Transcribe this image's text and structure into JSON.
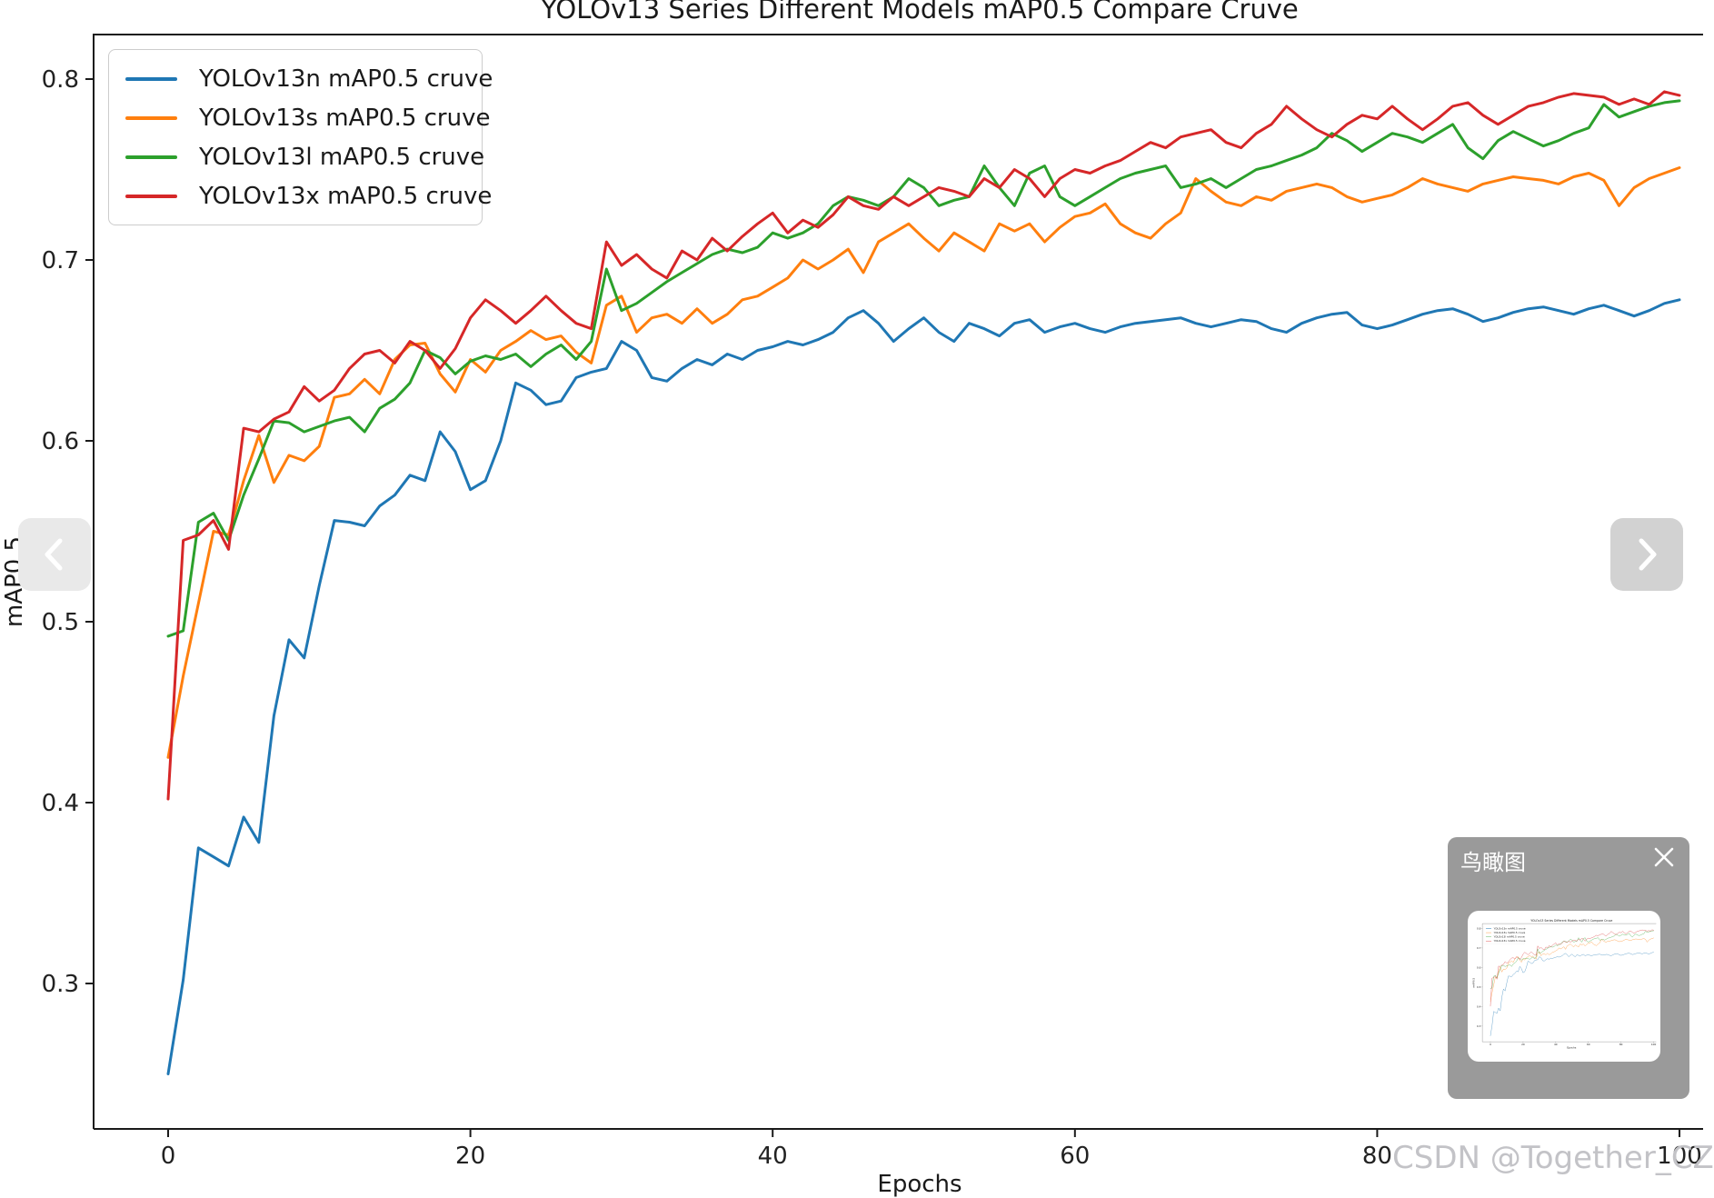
{
  "chart_data": {
    "type": "line",
    "title": "YOLOv13 Series Different Models mAP0.5 Compare Cruve",
    "xlabel": "Epochs",
    "ylabel": "mAP0.5",
    "grid": false,
    "legend_position": "upper left",
    "xlim": [
      -5,
      101.6
    ],
    "ylim": [
      0.22,
      0.825
    ],
    "xticks": [
      0,
      20,
      40,
      60,
      80,
      100
    ],
    "xtick_labels": [
      "0",
      "20",
      "40",
      "60",
      "80",
      "100"
    ],
    "yticks": [
      0.3,
      0.4,
      0.5,
      0.6,
      0.7,
      0.8
    ],
    "ytick_labels": [
      "0.3",
      "0.4",
      "0.5",
      "0.6",
      "0.7",
      "0.8"
    ],
    "x_start": 0,
    "x_step": 1,
    "series": [
      {
        "name": "YOLOv13n mAP0.5 cruve",
        "color": "#1f77b4",
        "values": [
          0.25,
          0.302,
          0.375,
          0.37,
          0.365,
          0.392,
          0.378,
          0.448,
          0.49,
          0.48,
          0.52,
          0.556,
          0.555,
          0.553,
          0.564,
          0.57,
          0.581,
          0.578,
          0.605,
          0.594,
          0.573,
          0.578,
          0.6,
          0.632,
          0.628,
          0.62,
          0.622,
          0.635,
          0.638,
          0.64,
          0.655,
          0.65,
          0.635,
          0.633,
          0.64,
          0.645,
          0.642,
          0.648,
          0.645,
          0.65,
          0.652,
          0.655,
          0.653,
          0.656,
          0.66,
          0.668,
          0.672,
          0.665,
          0.655,
          0.662,
          0.668,
          0.66,
          0.655,
          0.665,
          0.662,
          0.658,
          0.665,
          0.667,
          0.66,
          0.663,
          0.665,
          0.662,
          0.66,
          0.663,
          0.665,
          0.666,
          0.667,
          0.668,
          0.665,
          0.663,
          0.665,
          0.667,
          0.666,
          0.662,
          0.66,
          0.665,
          0.668,
          0.67,
          0.671,
          0.664,
          0.662,
          0.664,
          0.667,
          0.67,
          0.672,
          0.673,
          0.67,
          0.666,
          0.668,
          0.671,
          0.673,
          0.674,
          0.672,
          0.67,
          0.673,
          0.675,
          0.672,
          0.669,
          0.672,
          0.676,
          0.678
        ]
      },
      {
        "name": "YOLOv13s mAP0.5 cruve",
        "color": "#ff7f0e",
        "values": [
          0.425,
          0.47,
          0.51,
          0.55,
          0.548,
          0.578,
          0.603,
          0.577,
          0.592,
          0.589,
          0.597,
          0.624,
          0.626,
          0.634,
          0.626,
          0.645,
          0.653,
          0.654,
          0.637,
          0.627,
          0.645,
          0.638,
          0.65,
          0.655,
          0.661,
          0.656,
          0.658,
          0.649,
          0.643,
          0.675,
          0.68,
          0.66,
          0.668,
          0.67,
          0.665,
          0.673,
          0.665,
          0.67,
          0.678,
          0.68,
          0.685,
          0.69,
          0.7,
          0.695,
          0.7,
          0.706,
          0.693,
          0.71,
          0.715,
          0.72,
          0.712,
          0.705,
          0.715,
          0.71,
          0.705,
          0.72,
          0.716,
          0.72,
          0.71,
          0.718,
          0.724,
          0.726,
          0.731,
          0.72,
          0.715,
          0.712,
          0.72,
          0.726,
          0.745,
          0.738,
          0.732,
          0.73,
          0.735,
          0.733,
          0.738,
          0.74,
          0.742,
          0.74,
          0.735,
          0.732,
          0.734,
          0.736,
          0.74,
          0.745,
          0.742,
          0.74,
          0.738,
          0.742,
          0.744,
          0.746,
          0.745,
          0.744,
          0.742,
          0.746,
          0.748,
          0.744,
          0.73,
          0.74,
          0.745,
          0.748,
          0.751
        ]
      },
      {
        "name": "YOLOv13l mAP0.5 cruve",
        "color": "#2ca02c",
        "values": [
          0.492,
          0.495,
          0.555,
          0.56,
          0.545,
          0.57,
          0.59,
          0.611,
          0.61,
          0.605,
          0.608,
          0.611,
          0.613,
          0.605,
          0.618,
          0.623,
          0.632,
          0.65,
          0.646,
          0.637,
          0.644,
          0.647,
          0.645,
          0.648,
          0.641,
          0.648,
          0.653,
          0.645,
          0.655,
          0.695,
          0.672,
          0.676,
          0.682,
          0.688,
          0.693,
          0.698,
          0.703,
          0.706,
          0.704,
          0.707,
          0.715,
          0.712,
          0.715,
          0.72,
          0.73,
          0.735,
          0.733,
          0.73,
          0.735,
          0.745,
          0.74,
          0.73,
          0.733,
          0.735,
          0.752,
          0.74,
          0.73,
          0.748,
          0.752,
          0.735,
          0.73,
          0.735,
          0.74,
          0.745,
          0.748,
          0.75,
          0.752,
          0.74,
          0.742,
          0.745,
          0.74,
          0.745,
          0.75,
          0.752,
          0.755,
          0.758,
          0.762,
          0.77,
          0.766,
          0.76,
          0.765,
          0.77,
          0.768,
          0.765,
          0.77,
          0.775,
          0.762,
          0.756,
          0.766,
          0.771,
          0.767,
          0.763,
          0.766,
          0.77,
          0.773,
          0.786,
          0.779,
          0.782,
          0.785,
          0.787,
          0.788
        ]
      },
      {
        "name": "YOLOv13x mAP0.5 cruve",
        "color": "#d62728",
        "values": [
          0.402,
          0.545,
          0.548,
          0.556,
          0.54,
          0.607,
          0.605,
          0.612,
          0.616,
          0.63,
          0.622,
          0.628,
          0.64,
          0.648,
          0.65,
          0.643,
          0.655,
          0.65,
          0.64,
          0.651,
          0.668,
          0.678,
          0.672,
          0.665,
          0.672,
          0.68,
          0.672,
          0.665,
          0.662,
          0.71,
          0.697,
          0.703,
          0.695,
          0.69,
          0.705,
          0.7,
          0.712,
          0.705,
          0.713,
          0.72,
          0.726,
          0.715,
          0.722,
          0.718,
          0.725,
          0.735,
          0.73,
          0.728,
          0.735,
          0.73,
          0.735,
          0.74,
          0.738,
          0.735,
          0.745,
          0.74,
          0.75,
          0.745,
          0.735,
          0.745,
          0.75,
          0.748,
          0.752,
          0.755,
          0.76,
          0.765,
          0.762,
          0.768,
          0.77,
          0.772,
          0.765,
          0.762,
          0.77,
          0.775,
          0.785,
          0.778,
          0.772,
          0.768,
          0.775,
          0.78,
          0.778,
          0.785,
          0.778,
          0.772,
          0.778,
          0.785,
          0.787,
          0.78,
          0.775,
          0.78,
          0.785,
          0.787,
          0.79,
          0.792,
          0.791,
          0.79,
          0.786,
          0.789,
          0.786,
          0.793,
          0.791
        ]
      }
    ]
  },
  "overlay": {
    "minimap_title": "鸟瞰图",
    "watermark": "CSDN @Together_CZ"
  },
  "colors": {
    "axis": "#1a1a1a",
    "tick_label": "#222222",
    "watermark": "#c3c3c7",
    "nav_left_bg": "#e9e9e9",
    "nav_right_bg": "#d2d2d2",
    "minimap_bg": "#9a9a9a"
  }
}
